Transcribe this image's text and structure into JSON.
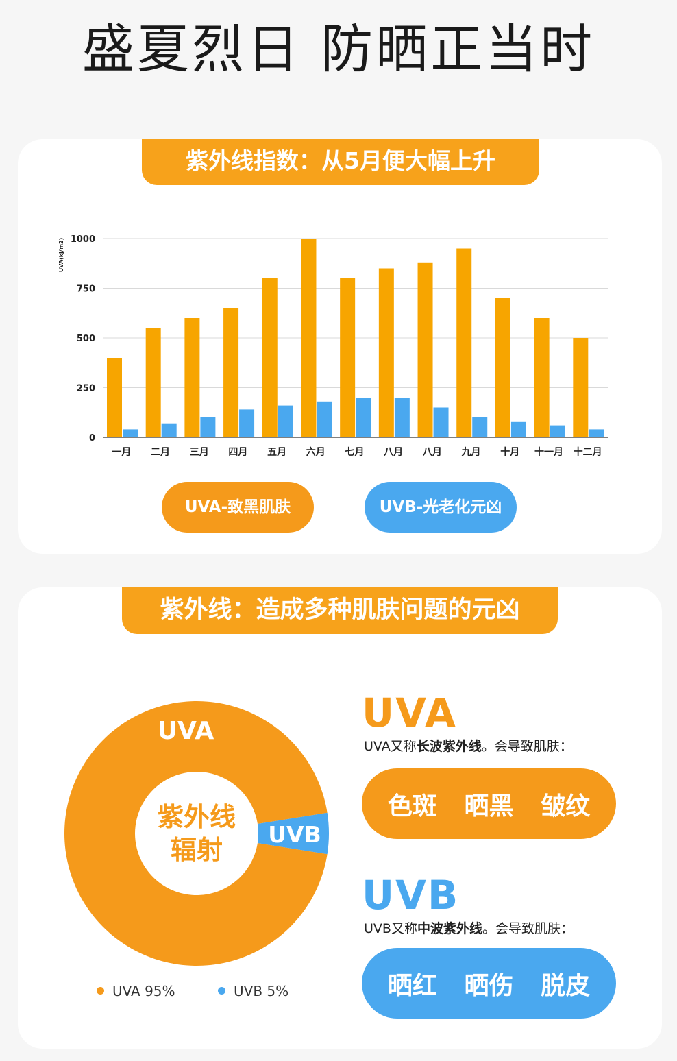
{
  "page_title": "盛夏烈日 防晒正当时",
  "section1": {
    "ribbon": "紫外线指数：从5月便大幅上升",
    "legend_uva": "UVA-致黑肌肤",
    "legend_uvb": "UVB-光老化元凶"
  },
  "chart_data": [
    {
      "type": "bar",
      "ylabel": "UVA(kj/m2)",
      "ylim": [
        0,
        1000
      ],
      "yticks": [
        0,
        250,
        500,
        750,
        1000
      ],
      "grid": true,
      "categories": [
        "一月",
        "二月",
        "三月",
        "四月",
        "五月",
        "六月",
        "七月",
        "八月",
        "八月",
        "九月",
        "十月",
        "十一月",
        "十二月"
      ],
      "series": [
        {
          "name": "UVA-致黑肌肤",
          "color": "#f7a500",
          "values": [
            400,
            550,
            600,
            650,
            800,
            1000,
            800,
            850,
            880,
            950,
            700,
            600,
            500
          ]
        },
        {
          "name": "UVB-光老化元凶",
          "color": "#4aa8ef",
          "values": [
            40,
            70,
            100,
            140,
            160,
            180,
            200,
            200,
            150,
            100,
            80,
            60,
            40
          ]
        }
      ]
    },
    {
      "type": "pie",
      "slices": [
        {
          "label": "UVA",
          "legend": "UVA 95%",
          "value": 95,
          "color": "#f59a1b"
        },
        {
          "label": "UVB",
          "legend": "UVB 5%",
          "value": 5,
          "color": "#4aa8ef"
        }
      ],
      "center_text": [
        "紫外线",
        "辐射"
      ]
    }
  ],
  "section2": {
    "ribbon": "紫外线：造成多种肌肤问题的元凶",
    "uva": {
      "heading": "UVA",
      "desc_prefix": "UVA又称",
      "desc_bold": "长波紫外线",
      "desc_suffix": "。会导致肌肤：",
      "effects": [
        "色斑",
        "晒黑",
        "皱纹"
      ]
    },
    "uvb": {
      "heading": "UVB",
      "desc_prefix": "UVB又称",
      "desc_bold": "中波紫外线",
      "desc_suffix": "。会导致肌肤：",
      "effects": [
        "晒红",
        "晒伤",
        "脱皮"
      ]
    }
  }
}
